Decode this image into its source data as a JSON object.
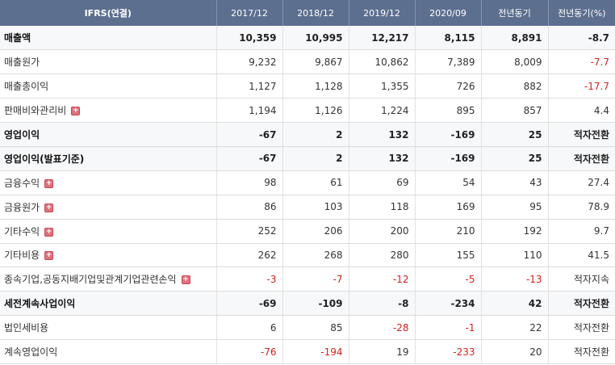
{
  "columns": [
    "IFRS(연결)",
    "2017/12",
    "2018/12",
    "2019/12",
    "2020/09",
    "전년동기",
    "전년동기(%)"
  ],
  "rows": [
    {
      "label": "매출액",
      "strong": true,
      "expand": false,
      "values": [
        "10,359",
        "10,995",
        "12,217",
        "8,115",
        "8,891",
        "-8.7"
      ],
      "neg": [
        false,
        false,
        false,
        false,
        false,
        true
      ]
    },
    {
      "label": "매출원가",
      "strong": false,
      "expand": false,
      "values": [
        "9,232",
        "9,867",
        "10,862",
        "7,389",
        "8,009",
        "-7.7"
      ],
      "neg": [
        false,
        false,
        false,
        false,
        false,
        true
      ]
    },
    {
      "label": "매출총이익",
      "strong": false,
      "expand": false,
      "values": [
        "1,127",
        "1,128",
        "1,355",
        "726",
        "882",
        "-17.7"
      ],
      "neg": [
        false,
        false,
        false,
        false,
        false,
        true
      ]
    },
    {
      "label": "판매비와관리비",
      "strong": false,
      "expand": true,
      "values": [
        "1,194",
        "1,126",
        "1,224",
        "895",
        "857",
        "4.4"
      ],
      "neg": [
        false,
        false,
        false,
        false,
        false,
        false
      ]
    },
    {
      "label": "영업이익",
      "strong": true,
      "expand": false,
      "values": [
        "-67",
        "2",
        "132",
        "-169",
        "25",
        "적자전환"
      ],
      "neg": [
        true,
        false,
        false,
        true,
        false,
        false
      ]
    },
    {
      "label": "영업이익(발표기준)",
      "strong": true,
      "expand": false,
      "values": [
        "-67",
        "2",
        "132",
        "-169",
        "25",
        "적자전환"
      ],
      "neg": [
        true,
        false,
        false,
        true,
        false,
        false
      ]
    },
    {
      "label": "금융수익",
      "strong": false,
      "expand": true,
      "values": [
        "98",
        "61",
        "69",
        "54",
        "43",
        "27.4"
      ],
      "neg": [
        false,
        false,
        false,
        false,
        false,
        false
      ]
    },
    {
      "label": "금융원가",
      "strong": false,
      "expand": true,
      "values": [
        "86",
        "103",
        "118",
        "169",
        "95",
        "78.9"
      ],
      "neg": [
        false,
        false,
        false,
        false,
        false,
        false
      ]
    },
    {
      "label": "기타수익",
      "strong": false,
      "expand": true,
      "values": [
        "252",
        "206",
        "200",
        "210",
        "192",
        "9.7"
      ],
      "neg": [
        false,
        false,
        false,
        false,
        false,
        false
      ]
    },
    {
      "label": "기타비용",
      "strong": false,
      "expand": true,
      "values": [
        "262",
        "268",
        "280",
        "155",
        "110",
        "41.5"
      ],
      "neg": [
        false,
        false,
        false,
        false,
        false,
        false
      ]
    },
    {
      "label": "종속기업,공동지배기업및관계기업관련손익",
      "strong": false,
      "expand": true,
      "values": [
        "-3",
        "-7",
        "-12",
        "-5",
        "-13",
        "적자지속"
      ],
      "neg": [
        true,
        true,
        true,
        true,
        true,
        false
      ]
    },
    {
      "label": "세전계속사업이익",
      "strong": true,
      "expand": false,
      "values": [
        "-69",
        "-109",
        "-8",
        "-234",
        "42",
        "적자전환"
      ],
      "neg": [
        true,
        true,
        true,
        true,
        false,
        false
      ]
    },
    {
      "label": "법인세비용",
      "strong": false,
      "expand": false,
      "values": [
        "6",
        "85",
        "-28",
        "-1",
        "22",
        "적자전환"
      ],
      "neg": [
        false,
        false,
        true,
        true,
        false,
        false
      ]
    },
    {
      "label": "계속영업이익",
      "strong": false,
      "expand": false,
      "values": [
        "-76",
        "-194",
        "19",
        "-233",
        "20",
        "적자전환"
      ],
      "neg": [
        true,
        true,
        false,
        true,
        false,
        false
      ]
    }
  ]
}
